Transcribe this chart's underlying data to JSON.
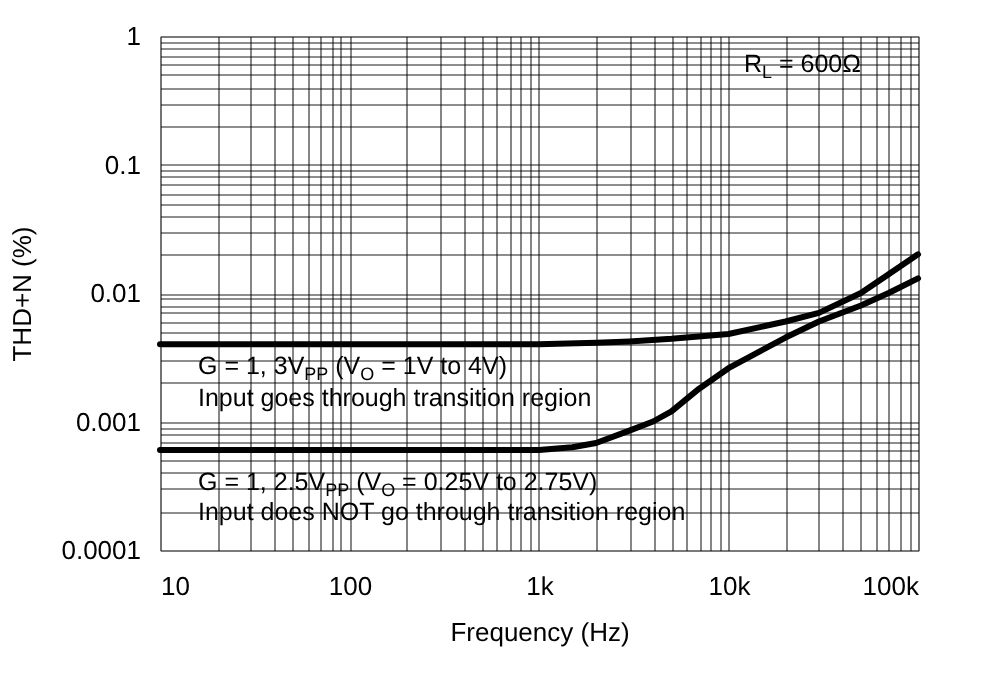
{
  "chart_data": {
    "type": "line",
    "xlabel": "Frequency (Hz)",
    "ylabel": "THD+N (%)",
    "log": "xy",
    "grid": true,
    "marker": "none",
    "line_style": "solid",
    "xlim": [
      10,
      100000
    ],
    "ylim": [
      0.0001,
      1
    ],
    "xticks": [
      10,
      {
        "value": 20,
        "label": null
      },
      {
        "value": 30,
        "label": null
      },
      {
        "value": 40,
        "label": null
      },
      {
        "value": 50,
        "label": null
      },
      {
        "value": 60,
        "label": null
      },
      {
        "value": 70,
        "label": null
      },
      {
        "value": 80,
        "label": null
      },
      {
        "value": 90,
        "label": null
      },
      100,
      {
        "value": 200,
        "label": null
      },
      {
        "value": 300,
        "label": null
      },
      {
        "value": 400,
        "label": null
      },
      {
        "value": 500,
        "label": null
      },
      {
        "value": 600,
        "label": null
      },
      {
        "value": 700,
        "label": null
      },
      {
        "value": 800,
        "label": null
      },
      {
        "value": 900,
        "label": null
      },
      {
        "value": 1000,
        "label": "1k"
      },
      {
        "value": 2000,
        "label": null
      },
      {
        "value": 3000,
        "label": null
      },
      {
        "value": 4000,
        "label": null
      },
      {
        "value": 5000,
        "label": null
      },
      {
        "value": 6000,
        "label": null
      },
      {
        "value": 7000,
        "label": null
      },
      {
        "value": 8000,
        "label": null
      },
      {
        "value": 9000,
        "label": null
      },
      {
        "value": 10000,
        "label": "10k"
      },
      {
        "value": 20000,
        "label": null
      },
      {
        "value": 30000,
        "label": null
      },
      {
        "value": 40000,
        "label": null
      },
      {
        "value": 50000,
        "label": null
      },
      {
        "value": 60000,
        "label": null
      },
      {
        "value": 70000,
        "label": null
      },
      {
        "value": 80000,
        "label": null
      },
      {
        "value": 90000,
        "label": null
      },
      {
        "value": 100000,
        "label": "100k"
      }
    ],
    "yticks": [
      0.0001,
      {
        "value": 0.0002,
        "label": null
      },
      {
        "value": 0.0003,
        "label": null
      },
      {
        "value": 0.0004,
        "label": null
      },
      {
        "value": 0.0005,
        "label": null
      },
      {
        "value": 0.0006,
        "label": null
      },
      {
        "value": 0.0007,
        "label": null
      },
      {
        "value": 0.0008,
        "label": null
      },
      {
        "value": 0.0009,
        "label": null
      },
      0.001,
      {
        "value": 0.002,
        "label": null
      },
      {
        "value": 0.003,
        "label": null
      },
      {
        "value": 0.004,
        "label": null
      },
      {
        "value": 0.005,
        "label": null
      },
      {
        "value": 0.006,
        "label": null
      },
      {
        "value": 0.007,
        "label": null
      },
      {
        "value": 0.008,
        "label": null
      },
      {
        "value": 0.009,
        "label": null
      },
      0.01,
      {
        "value": 0.02,
        "label": null
      },
      {
        "value": 0.03,
        "label": null
      },
      {
        "value": 0.04,
        "label": null
      },
      {
        "value": 0.05,
        "label": null
      },
      {
        "value": 0.06,
        "label": null
      },
      {
        "value": 0.07,
        "label": null
      },
      {
        "value": 0.08,
        "label": null
      },
      {
        "value": 0.09,
        "label": null
      },
      0.1,
      {
        "value": 0.2,
        "label": null
      },
      {
        "value": 0.3,
        "label": null
      },
      {
        "value": 0.4,
        "label": null
      },
      {
        "value": 0.5,
        "label": null
      },
      {
        "value": 0.6,
        "label": null
      },
      {
        "value": 0.7,
        "label": null
      },
      {
        "value": 0.8,
        "label": null
      },
      {
        "value": 0.9,
        "label": null
      },
      1
    ],
    "series": [
      {
        "color": "#000000",
        "x": [
          10,
          100,
          1000,
          2000,
          3000,
          5000,
          10000,
          20000,
          30000,
          50000,
          70000,
          100000
        ],
        "values": [
          0.004,
          0.004,
          0.004,
          0.0041,
          0.0042,
          0.0044,
          0.0048,
          0.006,
          0.007,
          0.01,
          0.014,
          0.02
        ]
      },
      {
        "color": "#000000",
        "x": [
          10,
          100,
          1000,
          1500,
          2000,
          3000,
          4000,
          5000,
          7000,
          10000,
          20000,
          30000,
          50000,
          70000,
          100000
        ],
        "values": [
          0.0006,
          0.0006,
          0.0006,
          0.00063,
          0.00068,
          0.00085,
          0.001,
          0.0012,
          0.0018,
          0.0026,
          0.0045,
          0.006,
          0.008,
          0.01,
          0.013
        ]
      }
    ],
    "annotations": [
      "R$_{L}$ = 600Ω",
      "G = 1, 3V$_{PP}$ (V$_{O}$ = 1V to 4V)",
      "Input goes through transition region",
      "G = 1, 2.5V$_{PP}$ (V$_{O}$ = 0.25V to 2.75V)",
      "Input does NOT go through transition region"
    ]
  }
}
